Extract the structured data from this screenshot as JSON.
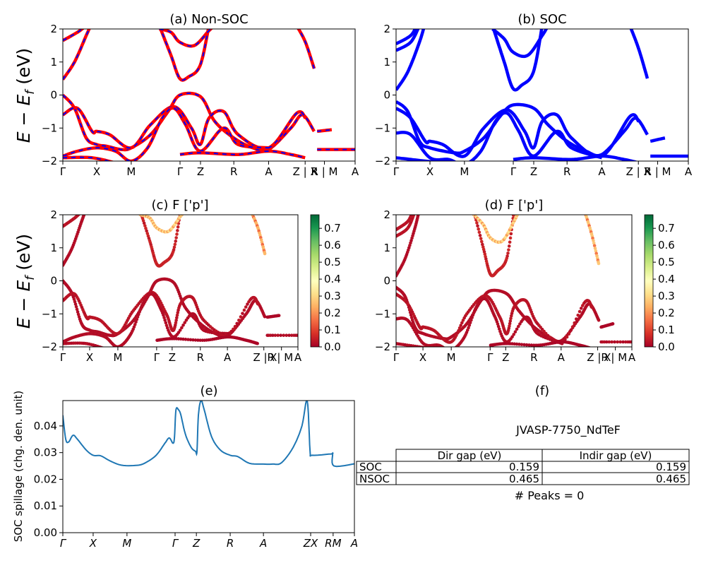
{
  "band_axis": {
    "ylabel_main": "E − E",
    "ylabel_sub": "f",
    "ylabel_unit": " (eV)",
    "ylim": [
      -2,
      2
    ],
    "yticks": [
      -2,
      -1,
      0,
      1,
      2
    ],
    "kticks_top": [
      [
        0,
        "Γ"
      ],
      [
        0.116,
        "X"
      ],
      [
        0.234,
        "M"
      ],
      [
        0.401,
        "Γ"
      ],
      [
        0.471,
        "Z"
      ],
      [
        0.585,
        "R"
      ],
      [
        0.704,
        "A"
      ],
      [
        0.829,
        "Z | X"
      ],
      [
        0.895,
        "R | M"
      ],
      [
        1.0,
        "A"
      ]
    ],
    "kticks_mid": [
      [
        0,
        "Γ"
      ],
      [
        0.114,
        "X"
      ],
      [
        0.234,
        "M"
      ],
      [
        0.399,
        "Γ"
      ],
      [
        0.465,
        "Z"
      ],
      [
        0.585,
        "R"
      ],
      [
        0.7,
        "A"
      ],
      [
        0.855,
        "Z |R"
      ],
      [
        0.93,
        "X| M"
      ],
      [
        1.0,
        "A"
      ]
    ]
  },
  "chart_data": [
    {
      "panel": "a",
      "type": "line",
      "title": "(a) Non-SOC",
      "colors": [
        "#ff0000",
        "#0000ff"
      ],
      "bands": [
        [
          [
            0,
            0.47
          ],
          [
            0.04,
            1.0
          ],
          [
            0.08,
            1.8
          ],
          [
            0.1,
            2.2
          ]
        ],
        [
          [
            0,
            1.65
          ],
          [
            0.05,
            1.9
          ],
          [
            0.08,
            2.1
          ]
        ],
        [
          [
            0.33,
            2.1
          ],
          [
            0.37,
            1.2
          ],
          [
            0.4,
            0.5
          ],
          [
            0.43,
            0.55
          ],
          [
            0.47,
            0.9
          ],
          [
            0.5,
            2.1
          ]
        ],
        [
          [
            0.33,
            2.0
          ],
          [
            0.37,
            1.9
          ],
          [
            0.4,
            1.6
          ],
          [
            0.45,
            1.5
          ],
          [
            0.5,
            1.95
          ],
          [
            0.52,
            2.1
          ]
        ],
        [
          [
            0.8,
            2.1
          ],
          [
            0.83,
            1.6
          ],
          [
            0.86,
            0.8
          ]
        ],
        [
          [
            0,
            0
          ],
          [
            0.04,
            -0.4
          ],
          [
            0.08,
            -1.3
          ],
          [
            0.116,
            -1.5
          ],
          [
            0.15,
            -1.55
          ],
          [
            0.2,
            -1.65
          ],
          [
            0.234,
            -1.6
          ],
          [
            0.3,
            -1.2
          ],
          [
            0.36,
            -0.5
          ],
          [
            0.401,
            0.0
          ],
          [
            0.471,
            -0.05
          ],
          [
            0.52,
            -0.8
          ],
          [
            0.585,
            -1.3
          ],
          [
            0.65,
            -1.6
          ],
          [
            0.704,
            -1.65
          ],
          [
            0.78,
            -1.0
          ],
          [
            0.82,
            -0.6
          ],
          [
            0.86,
            -1.1
          ]
        ],
        [
          [
            0,
            -0.6
          ],
          [
            0.05,
            -0.4
          ],
          [
            0.1,
            -1.1
          ],
          [
            0.116,
            -1.1
          ],
          [
            0.16,
            -1.2
          ],
          [
            0.234,
            -1.6
          ],
          [
            0.3,
            -0.9
          ],
          [
            0.38,
            -0.35
          ],
          [
            0.44,
            -1.0
          ],
          [
            0.47,
            -1.5
          ],
          [
            0.5,
            -0.7
          ],
          [
            0.55,
            -0.5
          ],
          [
            0.6,
            -1.2
          ],
          [
            0.704,
            -1.6
          ],
          [
            0.8,
            -0.55
          ],
          [
            0.83,
            -0.7
          ]
        ],
        [
          [
            0,
            -1.85
          ],
          [
            0.05,
            -1.7
          ],
          [
            0.116,
            -1.6
          ],
          [
            0.18,
            -1.7
          ],
          [
            0.234,
            -2.0
          ],
          [
            0.29,
            -1.6
          ],
          [
            0.34,
            -0.7
          ],
          [
            0.38,
            -0.4
          ],
          [
            0.42,
            -0.9
          ],
          [
            0.47,
            -1.7
          ],
          [
            0.55,
            -1.0
          ],
          [
            0.6,
            -1.5
          ],
          [
            0.704,
            -1.6
          ]
        ],
        [
          [
            0,
            -1.9
          ],
          [
            0.1,
            -1.9
          ],
          [
            0.2,
            -2.1
          ]
        ],
        [
          [
            0.401,
            -1.8
          ],
          [
            0.47,
            -1.75
          ],
          [
            0.6,
            -1.8
          ],
          [
            0.704,
            -1.7
          ],
          [
            0.78,
            -1.8
          ],
          [
            0.829,
            -1.9
          ]
        ],
        [
          [
            0.87,
            -1.1
          ],
          [
            0.92,
            -1.05
          ]
        ],
        [
          [
            0.87,
            -1.65
          ],
          [
            1.0,
            -1.65
          ]
        ]
      ]
    },
    {
      "panel": "b",
      "type": "line",
      "title": "(b) SOC",
      "colors": [
        "#0000ff"
      ],
      "bands": [
        [
          [
            0,
            0.15
          ],
          [
            0.04,
            0.7
          ],
          [
            0.08,
            1.6
          ],
          [
            0.1,
            2.2
          ]
        ],
        [
          [
            0,
            1.35
          ],
          [
            0.05,
            1.6
          ],
          [
            0.08,
            2.1
          ]
        ],
        [
          [
            0,
            1.55
          ],
          [
            0.05,
            1.8
          ],
          [
            0.07,
            2.1
          ]
        ],
        [
          [
            0.33,
            2.1
          ],
          [
            0.37,
            1.0
          ],
          [
            0.4,
            0.2
          ],
          [
            0.43,
            0.3
          ],
          [
            0.47,
            0.7
          ],
          [
            0.5,
            2.1
          ]
        ],
        [
          [
            0.33,
            2.0
          ],
          [
            0.37,
            1.7
          ],
          [
            0.4,
            1.3
          ],
          [
            0.45,
            1.2
          ],
          [
            0.5,
            1.8
          ],
          [
            0.52,
            2.1
          ]
        ],
        [
          [
            0.8,
            2.1
          ],
          [
            0.83,
            1.4
          ],
          [
            0.86,
            0.5
          ]
        ],
        [
          [
            0,
            -0.2
          ],
          [
            0.04,
            -0.5
          ],
          [
            0.08,
            -1.4
          ],
          [
            0.116,
            -1.6
          ],
          [
            0.2,
            -1.75
          ],
          [
            0.234,
            -1.7
          ],
          [
            0.3,
            -1.3
          ],
          [
            0.36,
            -0.6
          ],
          [
            0.401,
            -0.3
          ],
          [
            0.471,
            -0.4
          ],
          [
            0.52,
            -0.9
          ],
          [
            0.585,
            -1.4
          ],
          [
            0.65,
            -1.7
          ],
          [
            0.704,
            -1.8
          ],
          [
            0.78,
            -1.1
          ],
          [
            0.82,
            -0.7
          ],
          [
            0.86,
            -1.2
          ]
        ],
        [
          [
            0,
            -0.4
          ],
          [
            0.05,
            -0.7
          ],
          [
            0.1,
            -1.4
          ],
          [
            0.116,
            -1.4
          ],
          [
            0.16,
            -1.5
          ],
          [
            0.234,
            -1.85
          ],
          [
            0.3,
            -1.0
          ],
          [
            0.38,
            -0.45
          ],
          [
            0.44,
            -1.1
          ],
          [
            0.47,
            -1.6
          ],
          [
            0.5,
            -0.8
          ],
          [
            0.55,
            -0.6
          ],
          [
            0.6,
            -1.3
          ],
          [
            0.704,
            -1.85
          ],
          [
            0.8,
            -0.65
          ],
          [
            0.83,
            -0.8
          ]
        ],
        [
          [
            0,
            -1.15
          ],
          [
            0.05,
            -1.2
          ],
          [
            0.116,
            -1.9
          ],
          [
            0.18,
            -1.95
          ],
          [
            0.234,
            -2.1
          ],
          [
            0.29,
            -1.7
          ],
          [
            0.34,
            -0.8
          ],
          [
            0.38,
            -0.55
          ],
          [
            0.42,
            -1.1
          ],
          [
            0.47,
            -1.85
          ],
          [
            0.55,
            -1.1
          ],
          [
            0.6,
            -1.6
          ],
          [
            0.704,
            -1.9
          ]
        ],
        [
          [
            0,
            -1.9
          ],
          [
            0.1,
            -2.0
          ],
          [
            0.2,
            -2.1
          ]
        ],
        [
          [
            0.401,
            -1.95
          ],
          [
            0.47,
            -1.9
          ],
          [
            0.6,
            -1.95
          ],
          [
            0.704,
            -1.85
          ],
          [
            0.78,
            -1.95
          ],
          [
            0.829,
            -2.05
          ]
        ],
        [
          [
            0.87,
            -1.4
          ],
          [
            0.92,
            -1.3
          ]
        ],
        [
          [
            0.87,
            -1.85
          ],
          [
            1.0,
            -1.85
          ]
        ]
      ]
    },
    {
      "panel": "c",
      "type": "scatter",
      "title": "(c)  F ['p']",
      "source": "a",
      "weights": [
        0.02,
        0.03,
        0.05,
        0.25,
        0.2,
        0.02,
        0.03,
        0.02,
        0.02,
        0.01,
        0.01,
        0.02,
        0.02
      ],
      "colorbar": {
        "ticks": [
          0.0,
          0.1,
          0.2,
          0.3,
          0.4,
          0.5,
          0.6,
          0.7
        ],
        "range": [
          0,
          0.78
        ],
        "colormap": "RdYlGn"
      }
    },
    {
      "panel": "d",
      "type": "scatter",
      "title": "(d) F ['p']",
      "source": "b",
      "weights": [
        0.02,
        0.03,
        0.03,
        0.05,
        0.25,
        0.22,
        0.02,
        0.03,
        0.02,
        0.02,
        0.01,
        0.01,
        0.02
      ],
      "colorbar": {
        "ticks": [
          0.0,
          0.1,
          0.2,
          0.3,
          0.4,
          0.5,
          0.6,
          0.7
        ],
        "range": [
          0,
          0.78
        ],
        "colormap": "RdYlGn"
      }
    },
    {
      "panel": "e",
      "type": "line",
      "title": "(e)",
      "ylabel": "SOC spillage (chg. den. unit)",
      "color": "#1f77b4",
      "ylim": [
        0,
        0.0495
      ],
      "yticks": [
        "0.00",
        "0.01",
        "0.02",
        "0.03",
        "0.04"
      ],
      "kticks": [
        [
          0,
          "Γ"
        ],
        [
          0.104,
          "X"
        ],
        [
          0.22,
          "M"
        ],
        [
          0.385,
          "Γ"
        ],
        [
          0.458,
          "Z"
        ],
        [
          0.574,
          "R"
        ],
        [
          0.688,
          "A"
        ],
        [
          0.85,
          "ZX"
        ],
        [
          0.927,
          "RM"
        ],
        [
          1.0,
          "A"
        ]
      ],
      "points": [
        [
          0,
          0.044
        ],
        [
          0.01,
          0.035
        ],
        [
          0.02,
          0.034
        ],
        [
          0.035,
          0.0365
        ],
        [
          0.05,
          0.035
        ],
        [
          0.08,
          0.031
        ],
        [
          0.104,
          0.029
        ],
        [
          0.13,
          0.0288
        ],
        [
          0.16,
          0.027
        ],
        [
          0.2,
          0.0253
        ],
        [
          0.25,
          0.0252
        ],
        [
          0.28,
          0.026
        ],
        [
          0.32,
          0.029
        ],
        [
          0.35,
          0.0335
        ],
        [
          0.365,
          0.0355
        ],
        [
          0.378,
          0.0335
        ],
        [
          0.383,
          0.036
        ],
        [
          0.388,
          0.046
        ],
        [
          0.397,
          0.046
        ],
        [
          0.405,
          0.044
        ],
        [
          0.42,
          0.037
        ],
        [
          0.44,
          0.032
        ],
        [
          0.455,
          0.0305
        ],
        [
          0.46,
          0.0305
        ],
        [
          0.465,
          0.044
        ],
        [
          0.474,
          0.0495
        ],
        [
          0.485,
          0.046
        ],
        [
          0.51,
          0.036
        ],
        [
          0.54,
          0.031
        ],
        [
          0.574,
          0.029
        ],
        [
          0.6,
          0.0285
        ],
        [
          0.64,
          0.026
        ],
        [
          0.688,
          0.0257
        ],
        [
          0.72,
          0.0257
        ],
        [
          0.75,
          0.0262
        ],
        [
          0.79,
          0.032
        ],
        [
          0.82,
          0.04
        ],
        [
          0.838,
          0.0495
        ],
        [
          0.848,
          0.0305
        ],
        [
          0.855,
          0.029
        ],
        [
          0.92,
          0.0295
        ],
        [
          0.925,
          0.0295
        ],
        [
          0.93,
          0.025
        ],
        [
          1.0,
          0.0258
        ]
      ]
    }
  ],
  "summary": {
    "title": "(f)",
    "material": "JVASP-7750_NdTeF",
    "columns": [
      "Dir gap (eV)",
      "Indir gap (eV)"
    ],
    "rows": [
      {
        "label": "SOC",
        "dir": "0.159",
        "indir": "0.159"
      },
      {
        "label": "NSOC",
        "dir": "0.465",
        "indir": "0.465"
      }
    ],
    "peaks": "# Peaks = 0"
  }
}
